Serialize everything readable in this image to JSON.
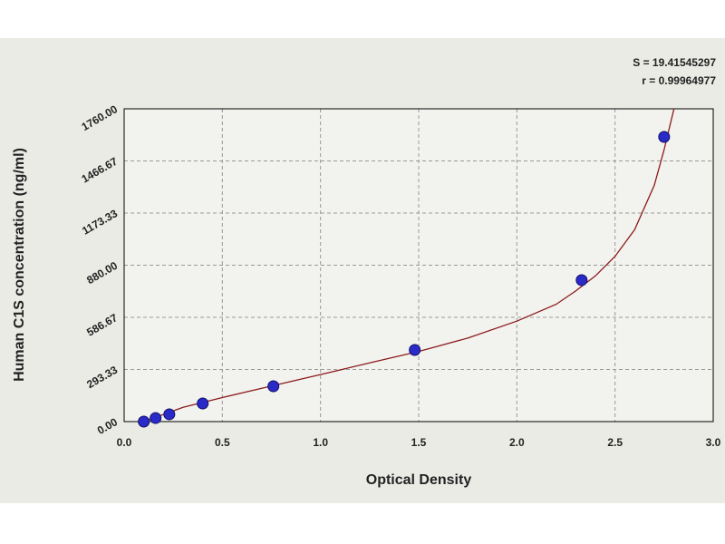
{
  "chart_data": {
    "type": "scatter",
    "xlabel": "Optical Density",
    "ylabel": "Human C1S concentration (ng/ml)",
    "annotations": [
      "S = 19.41545297",
      "r = 0.99964977"
    ],
    "x": [
      0.1,
      0.16,
      0.23,
      0.4,
      0.76,
      1.48,
      2.33,
      2.75
    ],
    "values": [
      0,
      20,
      41,
      102,
      199,
      403,
      796,
      1602
    ],
    "color": "#2a2ac8",
    "curve": {
      "x": [
        0.1,
        0.3,
        0.5,
        0.75,
        1.0,
        1.25,
        1.5,
        1.75,
        2.0,
        2.2,
        2.3,
        2.4,
        2.5,
        2.6,
        2.7,
        2.75,
        2.8
      ],
      "values": [
        0,
        80,
        135,
        200,
        265,
        330,
        395,
        470,
        565,
        660,
        735,
        820,
        930,
        1080,
        1330,
        1530,
        1760
      ],
      "color": "#8b1c1c"
    },
    "xlim": [
      0,
      3
    ],
    "ylim": [
      0,
      1760
    ],
    "xticks": [
      {
        "value": 0,
        "label": "0.0"
      },
      0.5,
      {
        "value": 1,
        "label": "1.0"
      },
      1.5,
      {
        "value": 2,
        "label": "2.0"
      },
      2.5,
      {
        "value": 3,
        "label": "3.0"
      }
    ],
    "yticks": [
      {
        "value": 0,
        "label": "0.00"
      },
      293.33,
      586.67,
      {
        "value": 880,
        "label": "880.00"
      },
      1173.33,
      1466.67,
      {
        "value": 1760,
        "label": "1760.00"
      }
    ],
    "grid": true
  }
}
